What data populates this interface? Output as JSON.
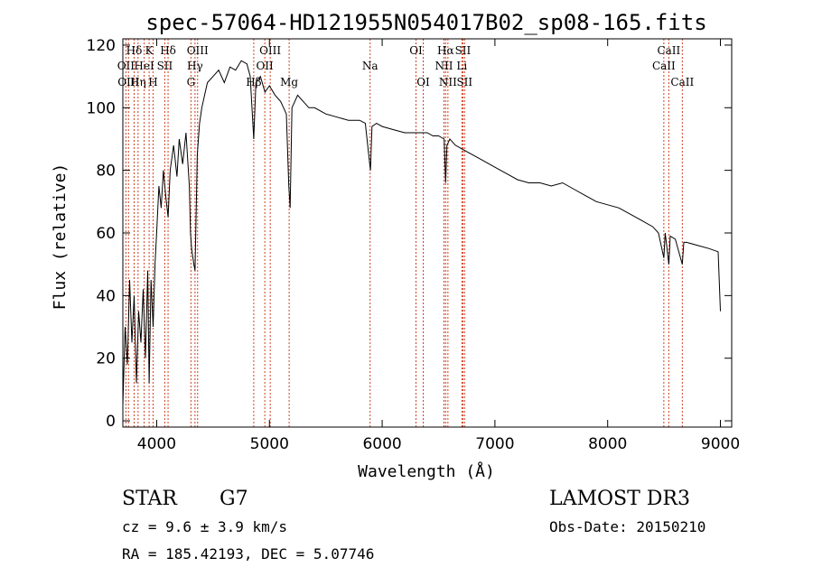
{
  "chart_data": {
    "type": "line",
    "title": "spec-57064-HD121955N054017B02_sp08-165.fits",
    "xlabel": "Wavelength (Å)",
    "ylabel": "Flux (relative)",
    "xlim": [
      3700,
      9100
    ],
    "ylim": [
      -2,
      122
    ],
    "xticks": [
      4000,
      5000,
      6000,
      7000,
      8000,
      9000
    ],
    "xtick_labels": [
      "4000",
      "5000",
      "6000",
      "7000",
      "8000",
      "9000"
    ],
    "yticks": [
      0,
      20,
      40,
      60,
      80,
      100,
      120
    ],
    "ytick_labels": [
      "0",
      "20",
      "40",
      "60",
      "80",
      "100",
      "120"
    ],
    "grid": false,
    "series": [
      {
        "name": "spectrum",
        "x": [
          3700,
          3720,
          3740,
          3760,
          3780,
          3800,
          3820,
          3840,
          3860,
          3880,
          3900,
          3920,
          3933,
          3950,
          3968,
          3985,
          4000,
          4020,
          4040,
          4060,
          4080,
          4101,
          4120,
          4150,
          4180,
          4200,
          4230,
          4260,
          4290,
          4300,
          4310,
          4330,
          4340,
          4360,
          4380,
          4400,
          4450,
          4500,
          4550,
          4600,
          4650,
          4700,
          4750,
          4800,
          4830,
          4861,
          4880,
          4920,
          4960,
          5000,
          5050,
          5100,
          5150,
          5172,
          5184,
          5200,
          5250,
          5300,
          5350,
          5400,
          5500,
          5600,
          5700,
          5800,
          5850,
          5890,
          5896,
          5910,
          5950,
          6000,
          6100,
          6200,
          6300,
          6400,
          6450,
          6500,
          6550,
          6563,
          6575,
          6600,
          6650,
          6700,
          6800,
          6900,
          7000,
          7100,
          7200,
          7300,
          7400,
          7500,
          7600,
          7700,
          7800,
          7900,
          8000,
          8100,
          8200,
          8300,
          8400,
          8450,
          8498,
          8510,
          8542,
          8555,
          8600,
          8662,
          8675,
          8700,
          8800,
          8900,
          8980,
          9000
        ],
        "y": [
          5,
          30,
          18,
          45,
          25,
          40,
          12,
          35,
          25,
          42,
          20,
          48,
          12,
          45,
          30,
          50,
          60,
          75,
          68,
          80,
          72,
          65,
          80,
          88,
          78,
          90,
          82,
          92,
          75,
          60,
          55,
          50,
          48,
          85,
          95,
          100,
          108,
          110,
          112,
          108,
          113,
          112,
          115,
          114,
          110,
          90,
          108,
          110,
          105,
          107,
          104,
          102,
          98,
          75,
          68,
          100,
          104,
          102,
          100,
          100,
          98,
          97,
          96,
          96,
          95,
          82,
          80,
          94,
          95,
          94,
          93,
          92,
          92,
          92,
          91,
          91,
          90,
          76,
          88,
          90,
          88,
          87,
          85,
          83,
          81,
          79,
          77,
          76,
          76,
          75,
          76,
          74,
          72,
          70,
          69,
          68,
          66,
          64,
          62,
          60,
          52,
          60,
          50,
          59,
          58,
          50,
          57,
          57,
          56,
          55,
          54,
          35
        ]
      }
    ],
    "line_markers": [
      {
        "label": "Hδ",
        "x": 3800,
        "row": 1
      },
      {
        "label": "K",
        "x": 3933,
        "row": 1
      },
      {
        "label": "Hδ",
        "x": 4101,
        "row": 1
      },
      {
        "label": "OIII",
        "x": 4363,
        "row": 1
      },
      {
        "label": "OIII",
        "x": 5007,
        "row": 1
      },
      {
        "label": "OI",
        "x": 6300,
        "row": 1
      },
      {
        "label": "Hα",
        "x": 6563,
        "row": 1
      },
      {
        "label": "SII",
        "x": 6716,
        "row": 1
      },
      {
        "label": "CaII",
        "x": 8542,
        "row": 1
      },
      {
        "label": "OII",
        "x": 3727,
        "row": 2
      },
      {
        "label": "HeI",
        "x": 3889,
        "row": 2
      },
      {
        "label": "SII",
        "x": 4072,
        "row": 2
      },
      {
        "label": "Hγ",
        "x": 4340,
        "row": 2
      },
      {
        "label": "OII",
        "x": 4959,
        "row": 2
      },
      {
        "label": "Na",
        "x": 5893,
        "row": 2
      },
      {
        "label": "NII",
        "x": 6548,
        "row": 2
      },
      {
        "label": "Li",
        "x": 6707,
        "row": 2
      },
      {
        "label": "CaII",
        "x": 8498,
        "row": 2
      },
      {
        "label": "OIII",
        "x": 3750,
        "row": 3
      },
      {
        "label": "Hη",
        "x": 3835,
        "row": 3
      },
      {
        "label": "H",
        "x": 3968,
        "row": 3
      },
      {
        "label": "G",
        "x": 4304,
        "row": 3
      },
      {
        "label": "Hβ",
        "x": 4861,
        "row": 3
      },
      {
        "label": "Mg",
        "x": 5175,
        "row": 3
      },
      {
        "label": "OI",
        "x": 6364,
        "row": 3
      },
      {
        "label": "NII",
        "x": 6583,
        "row": 3
      },
      {
        "label": "SII",
        "x": 6731,
        "row": 3
      },
      {
        "label": "CaII",
        "x": 8662,
        "row": 3
      }
    ],
    "marker_lines_x": [
      3727,
      3750,
      3800,
      3835,
      3889,
      3933,
      3968,
      4072,
      4101,
      4304,
      4340,
      4363,
      4861,
      4959,
      5007,
      5175,
      5893,
      6300,
      6364,
      6548,
      6563,
      6583,
      6707,
      6716,
      6731,
      8498,
      8542,
      8662
    ]
  },
  "info": {
    "object_type": "STAR",
    "subclass": "G7",
    "survey": "LAMOST DR3",
    "cz": "cz = 9.6 ± 3.9 km/s",
    "obs_date": "Obs-Date: 20150210",
    "coords": "RA = 185.42193, DEC =    5.07746"
  },
  "colors": {
    "marker_line": "#d04020",
    "spectrum": "#000000",
    "axis": "#000000"
  }
}
